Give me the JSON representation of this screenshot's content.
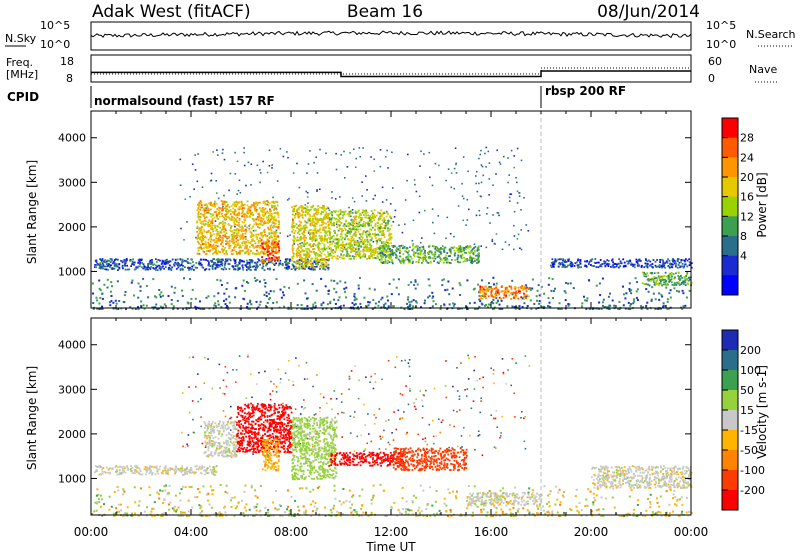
{
  "header": {
    "station": "Adak West (fitACF)",
    "beam": "Beam 16",
    "date": "08/Jun/2014"
  },
  "noise_panel": {
    "left_label": "N.Sky",
    "right_label": "N.Search",
    "left_ticks": [
      "10^5",
      "10^0"
    ],
    "right_ticks": [
      "10^5",
      "10^0"
    ]
  },
  "freq_panel": {
    "left_label_line1": "Freq.",
    "left_label_line2": "[MHz]",
    "left_ticks": [
      "18",
      "8"
    ],
    "right_label": "Nave",
    "right_ticks": [
      "60",
      "0"
    ],
    "freq_mhz_steps": [
      {
        "t_start": 0.0,
        "t_end": 10.0,
        "freq": 12.0
      },
      {
        "t_start": 10.0,
        "t_end": 18.0,
        "freq": 10.3
      },
      {
        "t_start": 18.0,
        "t_end": 24.0,
        "freq": 12.6
      }
    ]
  },
  "cpid": {
    "label": "CPID",
    "segments": [
      {
        "label": "normalsound (fast) 157 RF",
        "t_start": 0.0
      },
      {
        "label": "rbsp 200 RF",
        "t_start": 18.0
      }
    ]
  },
  "power_panel": {
    "ylabel": "Slant Range [km]",
    "cbar_label": "Power [dB]",
    "cbar_ticks": [
      "28",
      "24",
      "20",
      "16",
      "12",
      "8",
      "4"
    ],
    "cbar_colors": [
      "#ff0000",
      "#ff5a00",
      "#ff9600",
      "#e6c800",
      "#9ad200",
      "#3ca050",
      "#2a6e8c",
      "#1a2bd2",
      "#0000ff"
    ]
  },
  "velocity_panel": {
    "ylabel": "Slant Range [km]",
    "cbar_label": "Velocity [m s-1]",
    "cbar_ticks": [
      "200",
      "100",
      "50",
      "15",
      "-15",
      "-50",
      "-100",
      "-200"
    ],
    "cbar_colors": [
      "#1e2bb4",
      "#2a6e8c",
      "#3ca050",
      "#96d23c",
      "#c8c8c8",
      "#ffb400",
      "#ff8200",
      "#ff3c00",
      "#ff0000"
    ]
  },
  "axes": {
    "xlabel": "Time UT",
    "x_ticks": [
      "00:00",
      "04:00",
      "08:00",
      "12:00",
      "16:00",
      "20:00",
      "00:00"
    ],
    "y_ticks": [
      "1000",
      "2000",
      "3000",
      "4000"
    ]
  },
  "chart_data": {
    "type": "heatmap",
    "x_range_hours": [
      0,
      24
    ],
    "y_range_km": [
      180,
      4600
    ],
    "mode_change_hour": 18.0,
    "power_regions": [
      {
        "x": [
          0.1,
          9.5
        ],
        "y": [
          1050,
          1300
        ],
        "db": 6
      },
      {
        "x": [
          4.2,
          7.5
        ],
        "y": [
          1400,
          2600
        ],
        "db": 20
      },
      {
        "x": [
          6.8,
          7.5
        ],
        "y": [
          1200,
          1700
        ],
        "db": 26
      },
      {
        "x": [
          8.0,
          9.5
        ],
        "y": [
          1100,
          2500
        ],
        "db": 18
      },
      {
        "x": [
          9.5,
          12.0
        ],
        "y": [
          1300,
          2400
        ],
        "db": 16
      },
      {
        "x": [
          11.5,
          15.5
        ],
        "y": [
          1200,
          1600
        ],
        "db": 12
      },
      {
        "x": [
          15.5,
          17.5
        ],
        "y": [
          400,
          700
        ],
        "db": 24
      },
      {
        "x": [
          18.3,
          24.0
        ],
        "y": [
          1100,
          1300
        ],
        "db": 5
      },
      {
        "x": [
          22.0,
          24.0
        ],
        "y": [
          700,
          1000
        ],
        "db": 12
      }
    ],
    "velocity_regions": [
      {
        "x": [
          0.1,
          5.0
        ],
        "y": [
          1100,
          1300
        ],
        "v": 0
      },
      {
        "x": [
          4.5,
          5.8
        ],
        "y": [
          1500,
          2300
        ],
        "v": 0
      },
      {
        "x": [
          5.8,
          8.0
        ],
        "y": [
          1600,
          2700
        ],
        "v": -250
      },
      {
        "x": [
          6.8,
          7.5
        ],
        "y": [
          1200,
          1900
        ],
        "v": -40
      },
      {
        "x": [
          8.0,
          9.8
        ],
        "y": [
          1000,
          2400
        ],
        "v": 30
      },
      {
        "x": [
          9.5,
          12.5
        ],
        "y": [
          1300,
          1600
        ],
        "v": -250
      },
      {
        "x": [
          12.0,
          15.0
        ],
        "y": [
          1200,
          1700
        ],
        "v": -150
      },
      {
        "x": [
          15.0,
          18.0
        ],
        "y": [
          400,
          700
        ],
        "v": 0
      },
      {
        "x": [
          20.0,
          24.0
        ],
        "y": [
          800,
          1300
        ],
        "v": 0
      }
    ]
  }
}
